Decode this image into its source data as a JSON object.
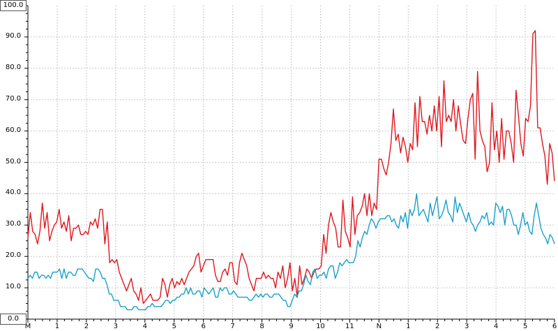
{
  "chart_data": {
    "type": "line",
    "title": "",
    "xlabel": "",
    "ylabel": "",
    "ylim": [
      0,
      100
    ],
    "yticks": [
      "0.0",
      "10.0",
      "20.0",
      "30.0",
      "40.0",
      "50.0",
      "60.0",
      "70.0",
      "80.0",
      "90.0",
      "100.0"
    ],
    "xtick_labels": [
      "M",
      "1",
      "2",
      "3",
      "4",
      "5",
      "6",
      "7",
      "8",
      "9",
      "10",
      "11",
      "N",
      "1",
      "2",
      "3",
      "4",
      "5",
      "6"
    ],
    "grid": true,
    "legend": "none",
    "colors": {
      "red_series": "#e0161e",
      "blue_series": "#1aa0c8",
      "grid": "#c8c8c8",
      "axis": "#000000"
    },
    "series": [
      {
        "key": "red",
        "values": [
          26,
          34,
          28,
          27,
          24,
          28,
          37,
          29,
          34,
          25,
          28,
          30,
          31,
          35,
          29,
          31,
          28,
          33,
          25,
          29,
          29,
          30,
          27,
          27,
          28,
          27,
          31,
          30,
          32,
          29,
          35,
          35,
          24,
          31,
          18,
          19,
          18,
          19,
          15,
          13,
          11,
          9,
          11,
          13,
          9,
          8,
          6,
          10,
          5,
          6,
          7,
          8,
          6,
          6,
          6,
          7,
          13,
          11,
          7,
          11,
          13,
          10,
          12,
          11,
          13,
          11,
          13,
          15,
          16,
          17,
          20,
          21,
          15,
          17,
          19,
          19,
          19,
          19,
          14,
          12,
          12,
          15,
          16,
          14,
          18,
          18,
          12,
          11,
          18,
          21,
          19,
          17,
          13,
          11,
          9,
          13,
          13,
          13,
          15,
          13,
          14,
          13,
          13,
          10,
          15,
          13,
          17,
          10,
          13,
          18,
          9,
          13,
          7,
          17,
          11,
          13,
          16,
          15,
          13,
          15,
          16,
          16,
          17,
          27,
          21,
          30,
          34,
          31,
          29,
          23,
          23,
          38,
          28,
          26,
          23,
          39,
          27,
          33,
          34,
          36,
          40,
          33,
          40,
          33,
          37,
          35,
          51,
          51,
          48,
          46,
          50,
          56,
          67,
          57,
          59,
          53,
          58,
          55,
          50,
          56,
          54,
          69,
          55,
          71,
          63,
          63,
          59,
          65,
          60,
          68,
          60,
          71,
          55,
          76,
          63,
          65,
          63,
          70,
          60,
          68,
          62,
          57,
          56,
          64,
          70,
          72,
          51,
          79,
          60,
          57,
          55,
          47,
          50,
          69,
          54,
          60,
          50,
          64,
          51,
          60,
          60,
          56,
          50,
          73,
          65,
          56,
          52,
          64,
          63,
          68,
          91,
          92,
          61,
          61,
          56,
          52,
          43,
          56,
          53,
          44
        ]
      },
      {
        "key": "blue",
        "values": [
          13,
          14,
          13,
          15,
          15,
          13,
          14,
          14,
          13,
          14,
          13,
          15,
          15,
          15,
          16,
          13,
          16,
          13,
          15,
          15,
          14,
          14,
          16,
          16,
          16,
          15,
          14,
          13,
          13,
          12,
          16,
          16,
          15,
          13,
          13,
          11,
          8,
          8,
          6,
          6,
          6,
          4,
          4,
          4,
          3,
          3,
          3,
          4,
          4,
          3,
          3,
          3,
          3,
          4,
          4,
          5,
          4,
          4,
          4,
          4,
          5,
          6,
          6,
          5,
          6,
          6,
          7,
          7,
          8,
          8,
          10,
          8,
          10,
          8,
          8,
          9,
          9,
          7,
          10,
          9,
          8,
          9,
          10,
          7,
          7,
          10,
          9,
          10,
          10,
          8,
          8,
          9,
          8,
          7,
          7,
          7,
          7,
          7,
          6,
          6,
          7,
          8,
          7,
          8,
          7,
          8,
          8,
          7,
          7,
          8,
          8,
          8,
          7,
          6,
          6,
          4,
          4,
          6,
          8,
          7,
          9,
          9,
          11,
          14,
          12,
          11,
          15,
          16,
          13,
          14,
          14,
          15,
          13,
          16,
          17,
          17,
          13,
          15,
          18,
          17,
          18,
          19,
          18,
          18,
          18,
          20,
          25,
          23,
          26,
          28,
          27,
          30,
          32,
          31,
          29,
          31,
          32,
          32,
          32,
          33,
          33,
          31,
          32,
          30,
          29,
          33,
          31,
          34,
          29,
          35,
          33,
          35,
          40,
          33,
          34,
          35,
          33,
          31,
          37,
          33,
          36,
          39,
          32,
          33,
          35,
          38,
          34,
          33,
          31,
          39,
          34,
          37,
          35,
          33,
          31,
          34,
          31,
          30,
          28,
          30,
          31,
          33,
          32,
          34,
          30,
          31,
          30,
          37,
          36,
          34,
          36,
          30,
          35,
          35,
          33,
          30,
          30,
          27,
          30,
          34,
          30,
          31,
          28,
          27,
          33,
          37,
          33,
          29,
          27,
          26,
          24,
          27,
          26,
          24
        ]
      }
    ]
  }
}
